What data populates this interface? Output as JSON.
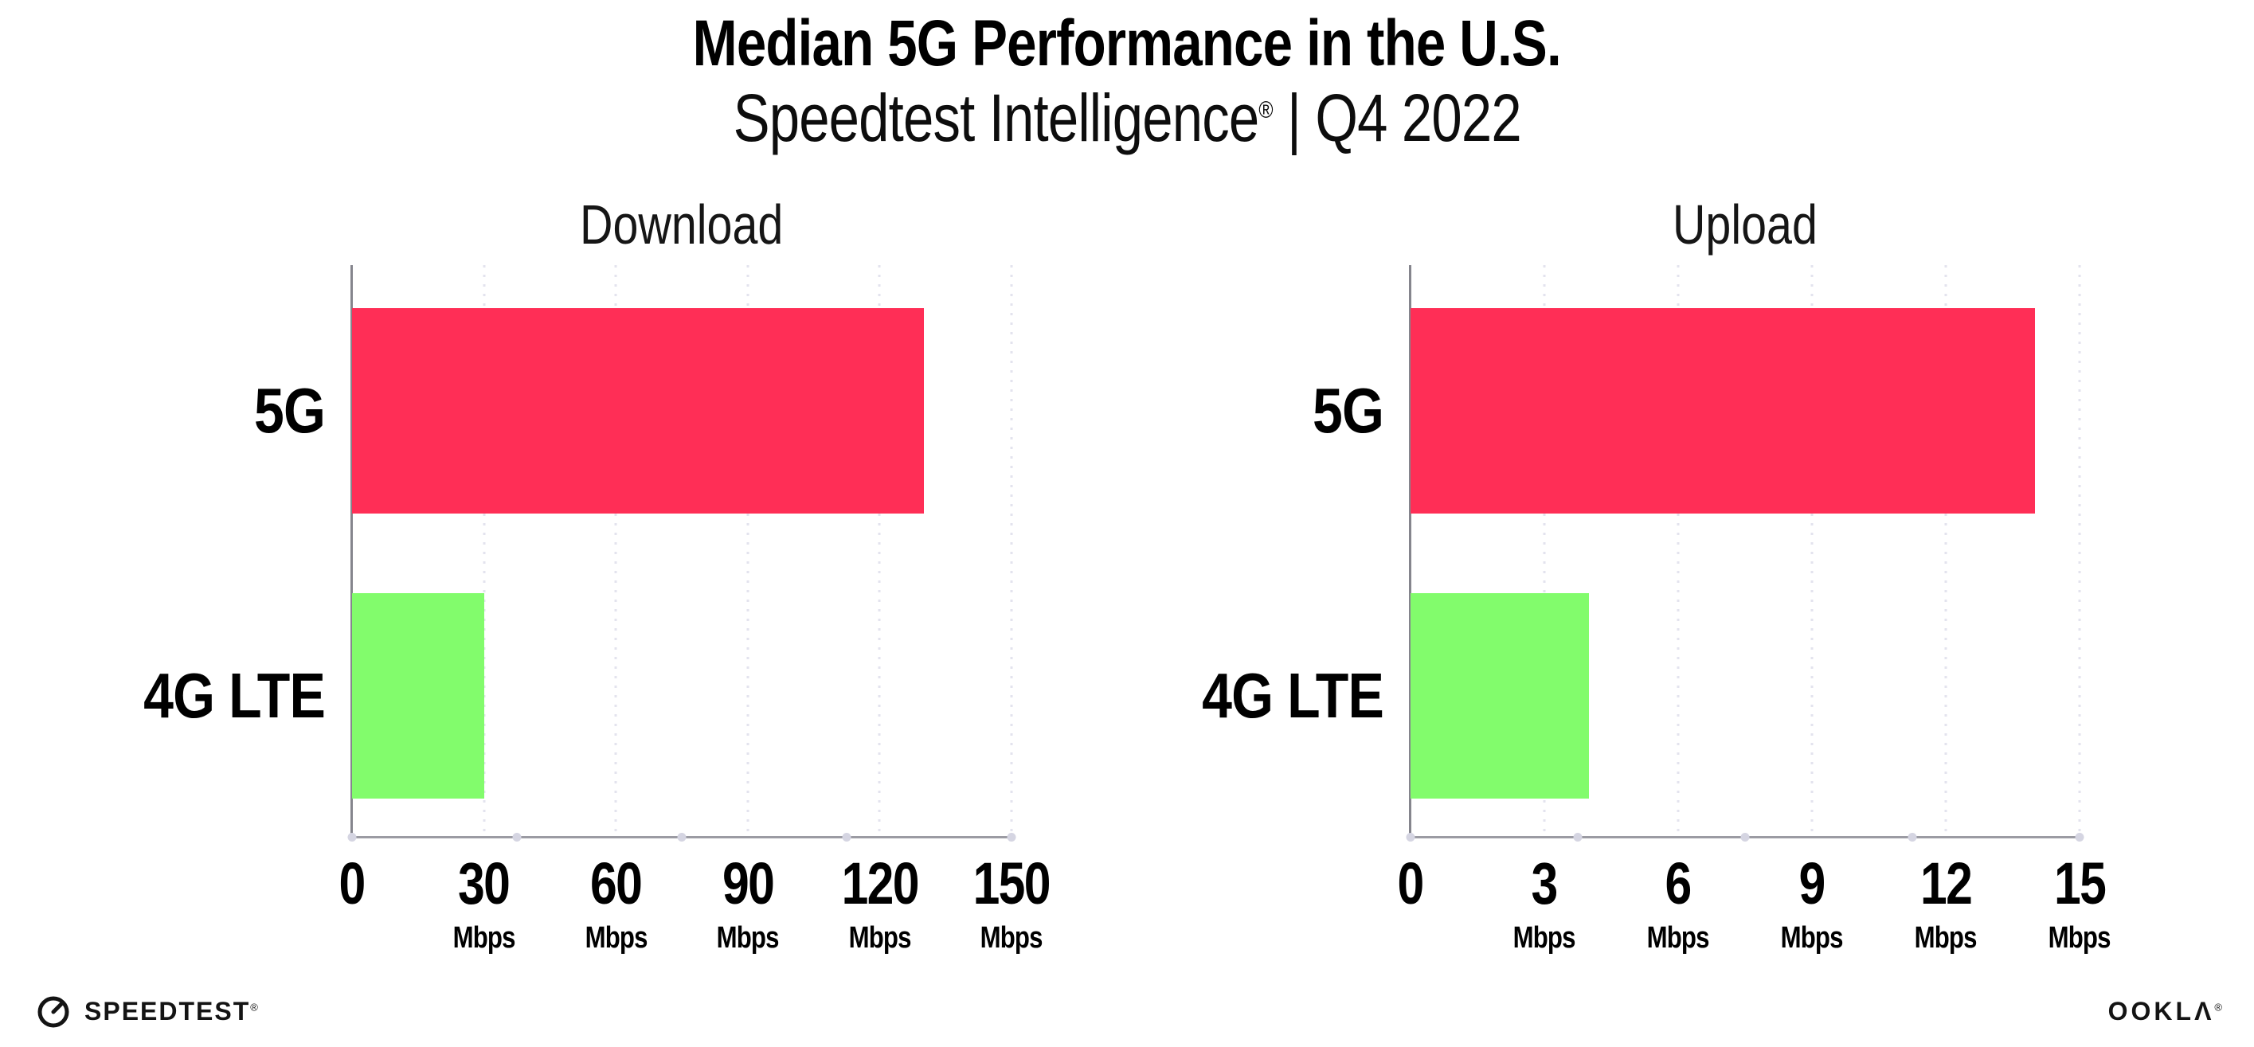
{
  "header": {
    "title": "Median 5G Performance in the U.S.",
    "subtitle": {
      "brand": "Speedtest Intelligence",
      "reg": "®",
      "rest": " | Q4 2022"
    }
  },
  "footer": {
    "speedtest": {
      "label": "SPEEDTEST",
      "mark": "®",
      "icon": "gauge-icon"
    },
    "ookla": {
      "label": "OOKLΛ",
      "mark": "®"
    }
  },
  "colors": {
    "bar_5g": "#ff2e56",
    "bar_4g_lte": "#82fc6c",
    "gridline": "#e3e3ee",
    "axis_line": "#9b9ba3",
    "y_axis_line": "#85858d",
    "axis_dot": "#d5d5e2",
    "text": "#000000"
  },
  "chart_data": [
    {
      "type": "bar",
      "orientation": "horizontal",
      "title": "Download",
      "categories": [
        "5G",
        "4G LTE"
      ],
      "values": [
        130,
        30
      ],
      "unit": "Mbps",
      "xlim": [
        0,
        150
      ],
      "xticks": [
        0,
        30,
        60,
        90,
        120,
        150
      ],
      "bar_colors": [
        "#ff2e56",
        "#82fc6c"
      ],
      "grid": "vertical-dotted",
      "legend": "none"
    },
    {
      "type": "bar",
      "orientation": "horizontal",
      "title": "Upload",
      "categories": [
        "5G",
        "4G LTE"
      ],
      "values": [
        14,
        4
      ],
      "unit": "Mbps",
      "xlim": [
        0,
        15
      ],
      "xticks": [
        0,
        3,
        6,
        9,
        12,
        15
      ],
      "bar_colors": [
        "#ff2e56",
        "#82fc6c"
      ],
      "grid": "vertical-dotted",
      "legend": "none"
    }
  ]
}
